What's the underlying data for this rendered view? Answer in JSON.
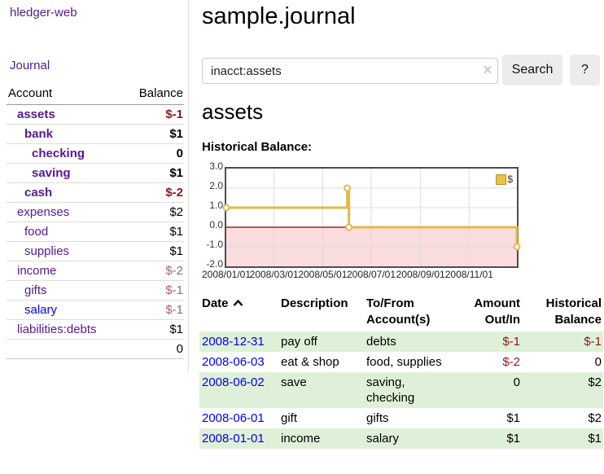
{
  "app": {
    "brand": "hledger-web"
  },
  "sidebar": {
    "journal_link": "Journal",
    "accounts_table": {
      "headers": {
        "account": "Account",
        "balance": "Balance"
      },
      "rows": [
        {
          "account": "assets",
          "balance": "$-1"
        },
        {
          "account": "bank",
          "balance": "$1"
        },
        {
          "account": "checking",
          "balance": "0"
        },
        {
          "account": "saving",
          "balance": "$1"
        },
        {
          "account": "cash",
          "balance": "$-2"
        },
        {
          "account": "expenses",
          "balance": "$2"
        },
        {
          "account": "food",
          "balance": "$1"
        },
        {
          "account": "supplies",
          "balance": "$1"
        },
        {
          "account": "income",
          "balance": "$-2"
        },
        {
          "account": "gifts",
          "balance": "$-1"
        },
        {
          "account": "salary",
          "balance": "$-1"
        },
        {
          "account": "liabilities:debts",
          "balance": "$1"
        }
      ],
      "total": "0"
    }
  },
  "main": {
    "title": "sample.journal",
    "search": {
      "value": "inacct:assets",
      "clear": "✕",
      "button": "Search",
      "help": "?"
    },
    "heading": "assets",
    "chart_label": "Historical Balance:"
  },
  "register": {
    "headers": {
      "date": "Date",
      "description": "Description",
      "account_line1": "To/From",
      "account_line2": "Account(s)",
      "amount_line1": "Amount",
      "amount_line2": "Out/In",
      "balance_line1": "Historical",
      "balance_line2": "Balance"
    },
    "rows": [
      {
        "date": "2008-12-31",
        "description": "pay off",
        "accounts": "debts",
        "amount": "$-1",
        "balance": "$-1"
      },
      {
        "date": "2008-06-03",
        "description": "eat & shop",
        "accounts": "food, supplies",
        "amount": "$-2",
        "balance": "0"
      },
      {
        "date": "2008-06-02",
        "description": "save",
        "accounts": "saving, checking",
        "amount": "0",
        "balance": "$2"
      },
      {
        "date": "2008-06-01",
        "description": "gift",
        "accounts": "gifts",
        "amount": "$1",
        "balance": "$2"
      },
      {
        "date": "2008-01-01",
        "description": "income",
        "accounts": "salary",
        "amount": "$1",
        "balance": "$1"
      }
    ]
  },
  "chart_data": {
    "type": "line",
    "subtype": "step",
    "title": "Historical Balance:",
    "xrange": [
      "2008-01-01",
      "2008-12-31"
    ],
    "ylim": [
      -2.0,
      3.0
    ],
    "yticks": [
      3.0,
      2.0,
      1.0,
      0.0,
      -1.0,
      -2.0
    ],
    "xticks": [
      "2008/01/01",
      "2008/03/01",
      "2008/05/01",
      "2008/07/01",
      "2008/09/01",
      "2008/11/01"
    ],
    "series": [
      {
        "name": "$",
        "color": "#e3b94a",
        "points": [
          [
            "2008-01-01",
            1
          ],
          [
            "2008-06-01",
            2
          ],
          [
            "2008-06-03",
            0
          ],
          [
            "2008-12-31",
            -1
          ]
        ]
      }
    ],
    "legend_position": "top-right",
    "grid": true,
    "gridline_color": "#dcdcdc",
    "negative_region_color": "#fbdddd",
    "zero_line_color": "#8b0000"
  },
  "colors": {
    "accent_purple": "#551a8b",
    "link_blue": "#0000e6",
    "negative_strong": "#8b1a1a",
    "negative_muted": "#ab6265",
    "row_green": "#dff0d8",
    "chart_gold": "#e3b94a"
  }
}
